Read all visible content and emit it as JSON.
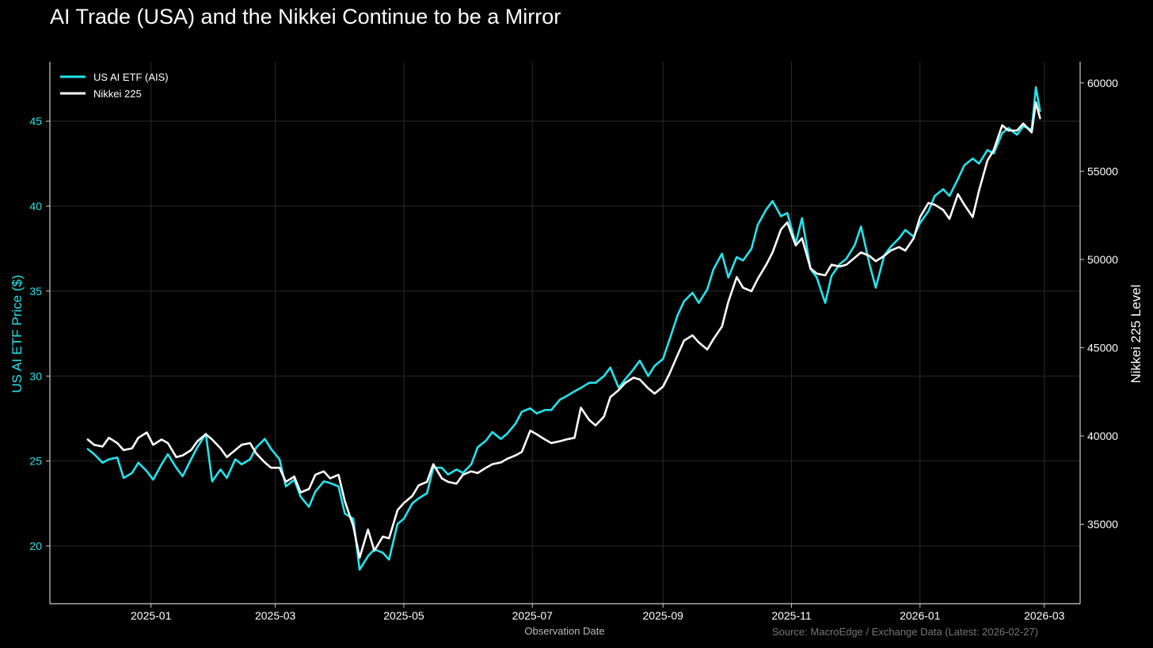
{
  "chart_data": {
    "type": "line",
    "title": "AI Trade (USA) and the Nikkei Continue to be a Mirror",
    "xlabel": "Observation Date",
    "ylabel_left": "US AI ETF Price ($)",
    "ylabel_right": "Nikkei 225 Level",
    "source": "Source: MacroEdge / Exchange Data (Latest: 2026-02-27)",
    "x_ticks": [
      "2025-01",
      "2025-03",
      "2025-05",
      "2025-07",
      "2025-09",
      "2025-11",
      "2026-01",
      "2026-03"
    ],
    "y_left_ticks": [
      20,
      25,
      30,
      35,
      40,
      45
    ],
    "y_right_ticks": [
      35000,
      40000,
      45000,
      50000,
      55000,
      60000
    ],
    "y_left_range": [
      16.6,
      48.5
    ],
    "y_right_range": [
      30500,
      61200
    ],
    "x_range": [
      "2024-11-14",
      "2026-03-18"
    ],
    "legend_position": "top-left",
    "grid": true,
    "colors": {
      "ai_etf": "#22e5ee",
      "nikkei": "#ffffff",
      "grid": "#2a2a2a",
      "axis": "#cccccc",
      "source": "#777777",
      "background": "#000000"
    },
    "series": [
      {
        "name": "US AI ETF (AIS)",
        "axis": "left",
        "x": [
          "2024-12-02",
          "2024-12-05",
          "2024-12-09",
          "2024-12-12",
          "2024-12-16",
          "2024-12-19",
          "2024-12-23",
          "2024-12-26",
          "2024-12-30",
          "2025-01-02",
          "2025-01-06",
          "2025-01-09",
          "2025-01-13",
          "2025-01-16",
          "2025-01-20",
          "2025-01-23",
          "2025-01-27",
          "2025-01-30",
          "2025-02-03",
          "2025-02-06",
          "2025-02-10",
          "2025-02-13",
          "2025-02-17",
          "2025-02-20",
          "2025-02-24",
          "2025-02-27",
          "2025-03-03",
          "2025-03-06",
          "2025-03-10",
          "2025-03-13",
          "2025-03-17",
          "2025-03-20",
          "2025-03-24",
          "2025-03-27",
          "2025-03-31",
          "2025-04-03",
          "2025-04-07",
          "2025-04-10",
          "2025-04-14",
          "2025-04-17",
          "2025-04-21",
          "2025-04-24",
          "2025-04-28",
          "2025-05-01",
          "2025-05-05",
          "2025-05-08",
          "2025-05-12",
          "2025-05-15",
          "2025-05-19",
          "2025-05-22",
          "2025-05-26",
          "2025-05-29",
          "2025-06-02",
          "2025-06-05",
          "2025-06-09",
          "2025-06-12",
          "2025-06-16",
          "2025-06-19",
          "2025-06-23",
          "2025-06-26",
          "2025-06-30",
          "2025-07-03",
          "2025-07-07",
          "2025-07-10",
          "2025-07-14",
          "2025-07-17",
          "2025-07-21",
          "2025-07-24",
          "2025-07-28",
          "2025-07-31",
          "2025-08-04",
          "2025-08-07",
          "2025-08-11",
          "2025-08-14",
          "2025-08-18",
          "2025-08-21",
          "2025-08-25",
          "2025-08-28",
          "2025-09-01",
          "2025-09-04",
          "2025-09-08",
          "2025-09-11",
          "2025-09-15",
          "2025-09-18",
          "2025-09-22",
          "2025-09-25",
          "2025-09-29",
          "2025-10-02",
          "2025-10-06",
          "2025-10-09",
          "2025-10-13",
          "2025-10-16",
          "2025-10-20",
          "2025-10-23",
          "2025-10-27",
          "2025-10-30",
          "2025-11-03",
          "2025-11-06",
          "2025-11-10",
          "2025-11-13",
          "2025-11-17",
          "2025-11-20",
          "2025-11-24",
          "2025-11-27",
          "2025-12-01",
          "2025-12-04",
          "2025-12-08",
          "2025-12-11",
          "2025-12-15",
          "2025-12-18",
          "2025-12-22",
          "2025-12-25",
          "2025-12-29",
          "2026-01-01",
          "2026-01-05",
          "2026-01-08",
          "2026-01-12",
          "2026-01-15",
          "2026-01-19",
          "2026-01-22",
          "2026-01-26",
          "2026-01-29",
          "2026-02-02",
          "2026-02-05",
          "2026-02-09",
          "2026-02-12",
          "2026-02-16",
          "2026-02-19",
          "2026-02-23",
          "2026-02-25",
          "2026-02-27"
        ],
        "values": [
          25.7,
          25.4,
          24.9,
          25.1,
          25.2,
          24.0,
          24.3,
          24.9,
          24.4,
          23.9,
          24.8,
          25.4,
          24.6,
          24.1,
          25.1,
          25.8,
          26.6,
          23.8,
          24.5,
          24.0,
          25.1,
          24.8,
          25.1,
          25.8,
          26.3,
          25.7,
          25.1,
          23.5,
          23.9,
          22.9,
          22.3,
          23.2,
          23.8,
          23.7,
          23.5,
          21.9,
          21.6,
          18.6,
          19.4,
          19.8,
          19.6,
          19.2,
          21.3,
          21.6,
          22.5,
          22.8,
          23.1,
          24.6,
          24.6,
          24.2,
          24.5,
          24.3,
          24.8,
          25.8,
          26.2,
          26.7,
          26.3,
          26.6,
          27.2,
          27.9,
          28.1,
          27.8,
          28.0,
          28.0,
          28.6,
          28.8,
          29.1,
          29.3,
          29.6,
          29.6,
          30.0,
          30.5,
          29.3,
          29.8,
          30.4,
          30.9,
          30.0,
          30.6,
          31.0,
          32.1,
          33.6,
          34.4,
          34.9,
          34.3,
          35.1,
          36.3,
          37.2,
          35.8,
          37.0,
          36.8,
          37.5,
          38.9,
          39.8,
          40.3,
          39.4,
          39.6,
          37.8,
          39.3,
          36.3,
          35.8,
          34.3,
          35.9,
          36.6,
          36.9,
          37.7,
          38.8,
          36.6,
          35.2,
          37.1,
          37.6,
          38.1,
          38.6,
          38.2,
          39.0,
          39.7,
          40.6,
          41.0,
          40.6,
          41.6,
          42.4,
          42.8,
          42.5,
          43.3,
          43.1,
          44.3,
          44.6,
          44.2,
          44.7,
          44.5,
          47.0,
          45.6
        ]
      },
      {
        "name": "Nikkei 225",
        "axis": "right",
        "x": [
          "2024-12-02",
          "2024-12-05",
          "2024-12-09",
          "2024-12-12",
          "2024-12-16",
          "2024-12-19",
          "2024-12-23",
          "2024-12-26",
          "2024-12-30",
          "2025-01-02",
          "2025-01-06",
          "2025-01-09",
          "2025-01-13",
          "2025-01-16",
          "2025-01-20",
          "2025-01-23",
          "2025-01-27",
          "2025-01-30",
          "2025-02-03",
          "2025-02-06",
          "2025-02-10",
          "2025-02-13",
          "2025-02-17",
          "2025-02-20",
          "2025-02-24",
          "2025-02-27",
          "2025-03-03",
          "2025-03-06",
          "2025-03-10",
          "2025-03-13",
          "2025-03-17",
          "2025-03-20",
          "2025-03-24",
          "2025-03-27",
          "2025-03-31",
          "2025-04-03",
          "2025-04-07",
          "2025-04-10",
          "2025-04-14",
          "2025-04-17",
          "2025-04-21",
          "2025-04-24",
          "2025-04-28",
          "2025-05-01",
          "2025-05-05",
          "2025-05-08",
          "2025-05-12",
          "2025-05-15",
          "2025-05-19",
          "2025-05-22",
          "2025-05-26",
          "2025-05-29",
          "2025-06-02",
          "2025-06-05",
          "2025-06-09",
          "2025-06-12",
          "2025-06-16",
          "2025-06-19",
          "2025-06-23",
          "2025-06-26",
          "2025-06-30",
          "2025-07-03",
          "2025-07-07",
          "2025-07-10",
          "2025-07-14",
          "2025-07-17",
          "2025-07-21",
          "2025-07-24",
          "2025-07-28",
          "2025-07-31",
          "2025-08-04",
          "2025-08-07",
          "2025-08-11",
          "2025-08-14",
          "2025-08-18",
          "2025-08-21",
          "2025-08-25",
          "2025-08-28",
          "2025-09-01",
          "2025-09-04",
          "2025-09-08",
          "2025-09-11",
          "2025-09-15",
          "2025-09-18",
          "2025-09-22",
          "2025-09-25",
          "2025-09-29",
          "2025-10-02",
          "2025-10-06",
          "2025-10-09",
          "2025-10-13",
          "2025-10-16",
          "2025-10-20",
          "2025-10-23",
          "2025-10-27",
          "2025-10-30",
          "2025-11-03",
          "2025-11-06",
          "2025-11-10",
          "2025-11-13",
          "2025-11-17",
          "2025-11-20",
          "2025-11-24",
          "2025-11-27",
          "2025-12-01",
          "2025-12-04",
          "2025-12-08",
          "2025-12-11",
          "2025-12-15",
          "2025-12-18",
          "2025-12-22",
          "2025-12-25",
          "2025-12-29",
          "2026-01-01",
          "2026-01-05",
          "2026-01-08",
          "2026-01-12",
          "2026-01-15",
          "2026-01-19",
          "2026-01-22",
          "2026-01-26",
          "2026-01-29",
          "2026-02-02",
          "2026-02-05",
          "2026-02-09",
          "2026-02-12",
          "2026-02-16",
          "2026-02-19",
          "2026-02-23",
          "2026-02-25",
          "2026-02-27"
        ],
        "values": [
          39800,
          39500,
          39400,
          39900,
          39600,
          39200,
          39300,
          39900,
          40200,
          39500,
          39800,
          39600,
          38800,
          38900,
          39200,
          39700,
          40100,
          39800,
          39300,
          38800,
          39200,
          39500,
          39600,
          39000,
          38500,
          38200,
          38200,
          37400,
          37700,
          36800,
          37000,
          37800,
          38000,
          37600,
          37800,
          36300,
          34900,
          33100,
          34700,
          33500,
          34300,
          34200,
          35800,
          36200,
          36600,
          37200,
          37400,
          38400,
          37600,
          37400,
          37300,
          37800,
          38000,
          37900,
          38200,
          38400,
          38500,
          38700,
          38900,
          39100,
          40300,
          40100,
          39800,
          39600,
          39700,
          39800,
          39900,
          41600,
          40900,
          40600,
          41100,
          42200,
          42600,
          43000,
          43300,
          43200,
          42700,
          42400,
          42800,
          43500,
          44600,
          45400,
          45700,
          45300,
          44900,
          45500,
          46200,
          47600,
          49000,
          48400,
          48200,
          48900,
          49700,
          50400,
          51700,
          52100,
          50800,
          51200,
          49500,
          49200,
          49100,
          49700,
          49600,
          49700,
          50100,
          50400,
          50200,
          49900,
          50200,
          50500,
          50700,
          50500,
          51200,
          52400,
          53200,
          53100,
          52800,
          52300,
          53700,
          53100,
          52400,
          53900,
          55600,
          56200,
          57600,
          57300,
          57300,
          57700,
          57200,
          58900,
          58000
        ]
      }
    ]
  }
}
